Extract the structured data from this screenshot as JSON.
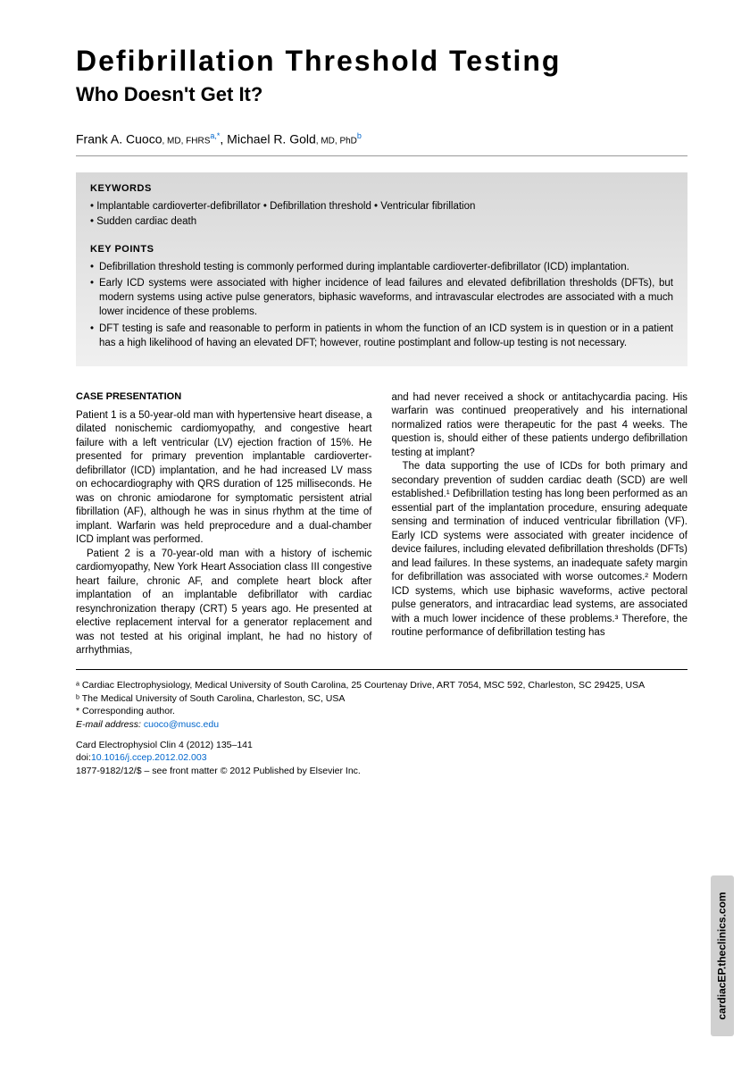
{
  "title": "Defibrillation Threshold Testing",
  "subtitle": "Who Doesn't Get It?",
  "authors": {
    "a1_name": "Frank A. Cuoco",
    "a1_creds": ", MD, FHRS",
    "a1_sup": "a,*",
    "a2_name": ", Michael R. Gold",
    "a2_creds": ", MD, PhD",
    "a2_sup": "b"
  },
  "keywords_label": "KEYWORDS",
  "keywords_line1": "• Implantable cardioverter-defibrillator • Defibrillation threshold • Ventricular fibrillation",
  "keywords_line2": "• Sudden cardiac death",
  "keypoints_label": "KEY POINTS",
  "keypoints": {
    "kp1": "Defibrillation threshold testing is commonly performed during implantable cardioverter-defibrillator (ICD) implantation.",
    "kp2": "Early ICD systems were associated with higher incidence of lead failures and elevated defibrillation thresholds (DFTs), but modern systems using active pulse generators, biphasic waveforms, and intravascular electrodes are associated with a much lower incidence of these problems.",
    "kp3": "DFT testing is safe and reasonable to perform in patients in whom the function of an ICD system is in question or in a patient has a high likelihood of having an elevated DFT; however, routine postimplant and follow-up testing is not necessary."
  },
  "section_head": "CASE PRESENTATION",
  "col1": {
    "p1": "Patient 1 is a 50-year-old man with hypertensive heart disease, a dilated nonischemic cardiomyopathy, and congestive heart failure with a left ventricular (LV) ejection fraction of 15%. He presented for primary prevention implantable cardioverter-defibrillator (ICD) implantation, and he had increased LV mass on echocardiography with QRS duration of 125 milliseconds. He was on chronic amiodarone for symptomatic persistent atrial fibrillation (AF), although he was in sinus rhythm at the time of implant. Warfarin was held preprocedure and a dual-chamber ICD implant was performed.",
    "p2": "Patient 2 is a 70-year-old man with a history of ischemic cardiomyopathy, New York Heart Association class III congestive heart failure, chronic AF, and complete heart block after implantation of an implantable defibrillator with cardiac resynchronization therapy (CRT) 5 years ago. He presented at elective replacement interval for a generator replacement and was not tested at his original implant, he had no history of arrhythmias,"
  },
  "col2": {
    "p1": "and had never received a shock or antitachycardia pacing. His warfarin was continued preoperatively and his international normalized ratios were therapeutic for the past 4 weeks. The question is, should either of these patients undergo defibrillation testing at implant?",
    "p2": "The data supporting the use of ICDs for both primary and secondary prevention of sudden cardiac death (SCD) are well established.¹ Defibrillation testing has long been performed as an essential part of the implantation procedure, ensuring adequate sensing and termination of induced ventricular fibrillation (VF). Early ICD systems were associated with greater incidence of device failures, including elevated defibrillation thresholds (DFTs) and lead failures. In these systems, an inadequate safety margin for defibrillation was associated with worse outcomes.² Modern ICD systems, which use biphasic waveforms, active pectoral pulse generators, and intracardiac lead systems, are associated with a much lower incidence of these problems.³ Therefore, the routine performance of defibrillation testing has"
  },
  "affiliations": {
    "a": "ᵃ Cardiac Electrophysiology, Medical University of South Carolina, 25 Courtenay Drive, ART 7054, MSC 592, Charleston, SC 29425, USA",
    "b": "ᵇ The Medical University of South Carolina, Charleston, SC, USA",
    "corr": "* Corresponding author.",
    "email_label": "E-mail address: ",
    "email": "cuoco@musc.edu"
  },
  "pub": {
    "citation": "Card Electrophysiol Clin 4 (2012) 135–141",
    "doi_label": "doi:",
    "doi": "10.1016/j.ccep.2012.02.003",
    "copyright": "1877-9182/12/$ – see front matter © 2012 Published by Elsevier Inc."
  },
  "side_tab": "cardiacEP.theclinics.com",
  "colors": {
    "link": "#0066cc",
    "box_top": "#d8d8d8",
    "box_bottom": "#f0f0f0",
    "tab_bg": "#d0d0d0"
  },
  "fonts": {
    "title_size": 32,
    "subtitle_size": 22,
    "body_size": 11.5,
    "footer_size": 10.5
  }
}
